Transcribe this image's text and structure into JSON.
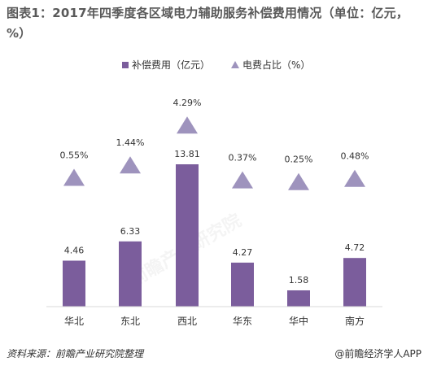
{
  "header": {
    "title": "图表1：2017年四季度各区域电力辅助服务补偿费用情况（单位：亿元，%）"
  },
  "legend": {
    "bar_label": "补偿费用（亿元）",
    "marker_label": "电费占比（%）"
  },
  "footer": {
    "source": "资料来源：前瞻产业研究院整理",
    "brand": "@前瞻经济学人APP"
  },
  "colors": {
    "bar": "#7b5d9c",
    "marker": "#9e93bd",
    "axis": "#d9d9d9"
  },
  "chart_data": {
    "type": "bar",
    "title": "图表1：2017年四季度各区域电力辅助服务补偿费用情况（单位：亿元，%）",
    "categories": [
      "华北",
      "东北",
      "西北",
      "华东",
      "华中",
      "南方"
    ],
    "series": [
      {
        "name": "补偿费用（亿元）",
        "type": "bar",
        "values": [
          4.46,
          6.33,
          13.81,
          4.27,
          1.58,
          4.72
        ],
        "labels": [
          "4.46",
          "6.33",
          "13.81",
          "4.27",
          "1.58",
          "4.72"
        ]
      },
      {
        "name": "电费占比（%）",
        "type": "marker",
        "marker": "triangle",
        "values": [
          0.55,
          1.44,
          4.29,
          0.37,
          0.25,
          0.48
        ],
        "labels": [
          "0.55%",
          "1.44%",
          "4.29%",
          "0.37%",
          "0.25%",
          "0.48%"
        ]
      }
    ],
    "legend": "top-center",
    "grid": false
  }
}
